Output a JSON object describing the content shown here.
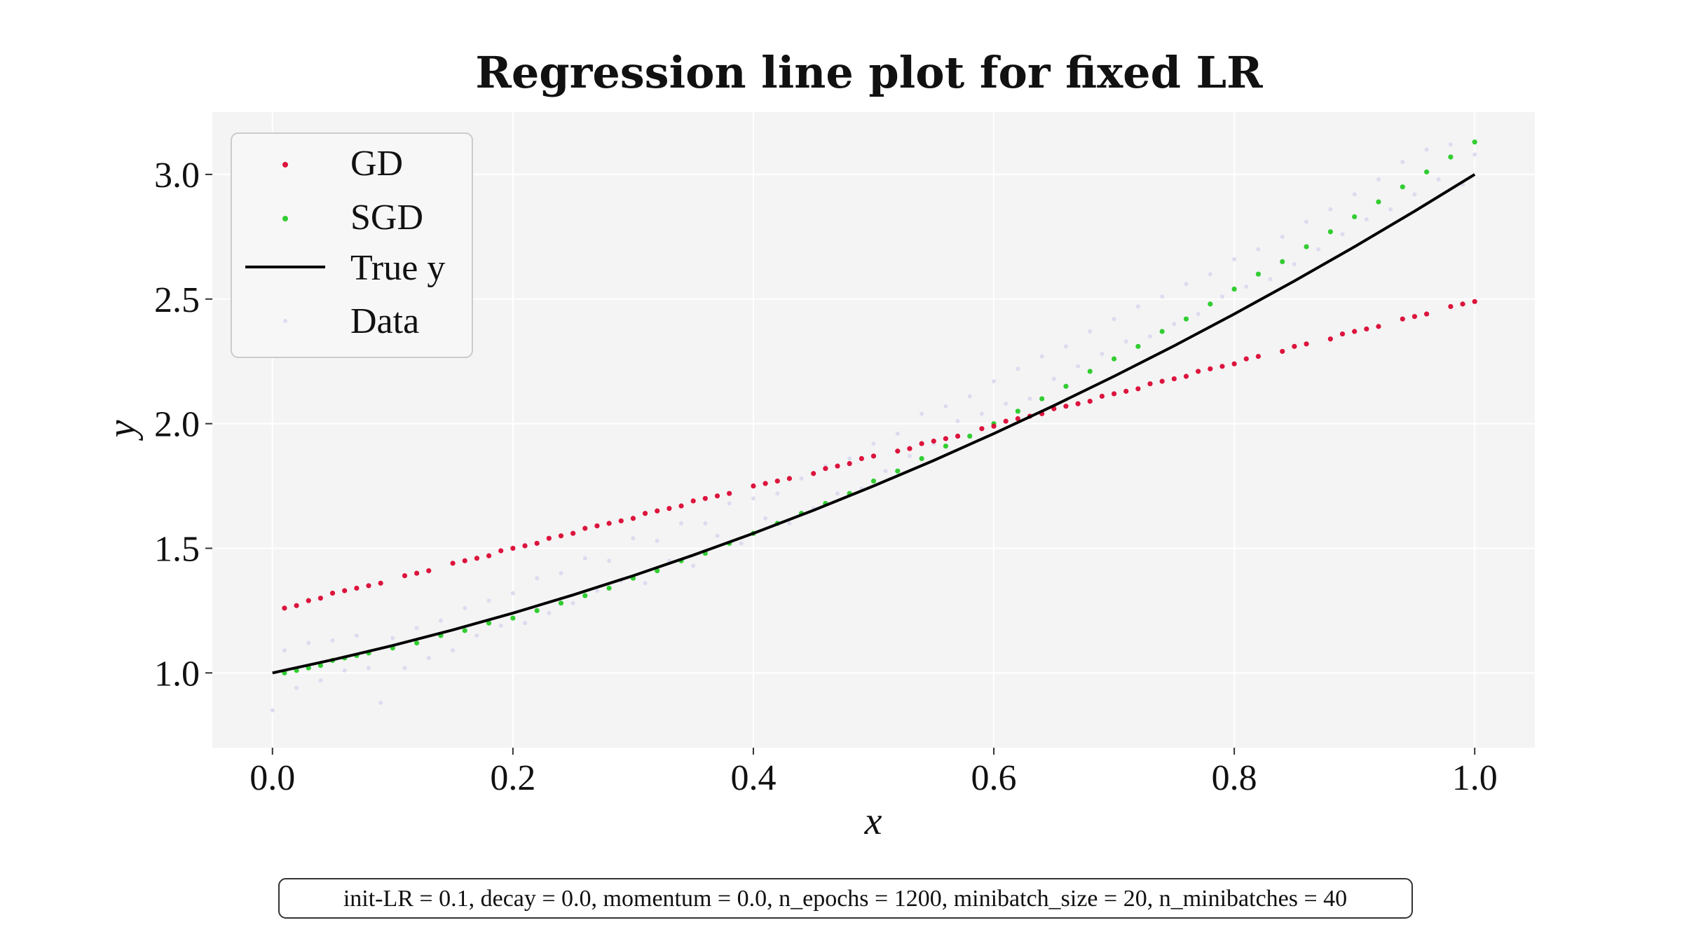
{
  "chart_data": {
    "type": "scatter",
    "title": "Regression line plot for fixed LR",
    "xlabel": "x",
    "ylabel": "y",
    "xlim": [
      -0.05,
      1.05
    ],
    "ylim": [
      0.7,
      3.25
    ],
    "grid": true,
    "legend_position": "top-left",
    "x_ticks": [
      0.0,
      0.2,
      0.4,
      0.6,
      0.8,
      1.0
    ],
    "x_tick_labels": [
      "0.0",
      "0.2",
      "0.4",
      "0.6",
      "0.8",
      "1.0"
    ],
    "y_ticks": [
      1.0,
      1.5,
      2.0,
      2.5,
      3.0
    ],
    "y_tick_labels": [
      "1.0",
      "1.5",
      "2.0",
      "2.5",
      "3.0"
    ],
    "series": [
      {
        "name": "GD",
        "kind": "points",
        "color": "#dc143c",
        "x": [
          0.01,
          0.02,
          0.03,
          0.04,
          0.05,
          0.06,
          0.07,
          0.08,
          0.09,
          0.11,
          0.12,
          0.13,
          0.15,
          0.16,
          0.17,
          0.18,
          0.19,
          0.2,
          0.21,
          0.22,
          0.23,
          0.24,
          0.25,
          0.26,
          0.27,
          0.28,
          0.29,
          0.3,
          0.31,
          0.32,
          0.33,
          0.34,
          0.35,
          0.36,
          0.37,
          0.38,
          0.4,
          0.41,
          0.42,
          0.43,
          0.45,
          0.46,
          0.47,
          0.48,
          0.49,
          0.5,
          0.52,
          0.53,
          0.54,
          0.55,
          0.56,
          0.57,
          0.59,
          0.6,
          0.61,
          0.62,
          0.63,
          0.64,
          0.65,
          0.66,
          0.67,
          0.68,
          0.69,
          0.7,
          0.71,
          0.72,
          0.73,
          0.74,
          0.75,
          0.76,
          0.77,
          0.78,
          0.79,
          0.8,
          0.81,
          0.82,
          0.84,
          0.85,
          0.86,
          0.88,
          0.89,
          0.9,
          0.91,
          0.92,
          0.94,
          0.95,
          0.96,
          0.98,
          0.99,
          1.0
        ],
        "y": [
          1.26,
          1.27,
          1.29,
          1.3,
          1.32,
          1.33,
          1.34,
          1.35,
          1.36,
          1.39,
          1.4,
          1.41,
          1.44,
          1.45,
          1.46,
          1.47,
          1.49,
          1.5,
          1.51,
          1.52,
          1.54,
          1.55,
          1.56,
          1.58,
          1.59,
          1.6,
          1.61,
          1.62,
          1.64,
          1.65,
          1.66,
          1.67,
          1.69,
          1.7,
          1.71,
          1.72,
          1.75,
          1.76,
          1.77,
          1.78,
          1.8,
          1.82,
          1.83,
          1.84,
          1.86,
          1.87,
          1.89,
          1.9,
          1.92,
          1.93,
          1.94,
          1.95,
          1.98,
          1.99,
          2.01,
          2.02,
          2.03,
          2.04,
          2.06,
          2.07,
          2.08,
          2.09,
          2.11,
          2.12,
          2.13,
          2.14,
          2.16,
          2.17,
          2.18,
          2.19,
          2.21,
          2.22,
          2.23,
          2.24,
          2.26,
          2.27,
          2.29,
          2.31,
          2.32,
          2.34,
          2.36,
          2.37,
          2.38,
          2.39,
          2.42,
          2.43,
          2.44,
          2.47,
          2.48,
          2.49
        ]
      },
      {
        "name": "SGD",
        "kind": "points",
        "color": "#32cd32",
        "x": [
          0.01,
          0.02,
          0.03,
          0.04,
          0.05,
          0.06,
          0.07,
          0.08,
          0.1,
          0.12,
          0.14,
          0.16,
          0.18,
          0.2,
          0.22,
          0.24,
          0.26,
          0.28,
          0.3,
          0.32,
          0.34,
          0.36,
          0.38,
          0.4,
          0.42,
          0.44,
          0.46,
          0.48,
          0.5,
          0.52,
          0.54,
          0.56,
          0.58,
          0.6,
          0.62,
          0.64,
          0.66,
          0.68,
          0.7,
          0.72,
          0.74,
          0.76,
          0.78,
          0.8,
          0.82,
          0.84,
          0.86,
          0.88,
          0.9,
          0.92,
          0.94,
          0.96,
          0.98,
          1.0
        ],
        "y": [
          1.0,
          1.01,
          1.02,
          1.03,
          1.05,
          1.06,
          1.07,
          1.08,
          1.1,
          1.12,
          1.15,
          1.17,
          1.2,
          1.22,
          1.25,
          1.28,
          1.31,
          1.34,
          1.38,
          1.41,
          1.45,
          1.48,
          1.52,
          1.56,
          1.6,
          1.64,
          1.68,
          1.72,
          1.77,
          1.81,
          1.86,
          1.91,
          1.95,
          2.0,
          2.05,
          2.1,
          2.15,
          2.21,
          2.26,
          2.31,
          2.37,
          2.42,
          2.48,
          2.54,
          2.6,
          2.65,
          2.71,
          2.77,
          2.83,
          2.89,
          2.95,
          3.01,
          3.07,
          3.13
        ]
      },
      {
        "name": "True y",
        "kind": "line",
        "color": "#000000",
        "x": [
          0.0,
          0.05,
          0.1,
          0.15,
          0.2,
          0.25,
          0.3,
          0.35,
          0.4,
          0.45,
          0.5,
          0.55,
          0.6,
          0.65,
          0.7,
          0.75,
          0.8,
          0.85,
          0.9,
          0.95,
          1.0
        ],
        "y": [
          1.0,
          1.0525,
          1.11,
          1.1725,
          1.24,
          1.3125,
          1.39,
          1.4725,
          1.56,
          1.6525,
          1.75,
          1.8525,
          1.96,
          2.0725,
          2.19,
          2.3125,
          2.44,
          2.5725,
          2.71,
          2.8525,
          3.0
        ]
      },
      {
        "name": "Data",
        "kind": "points",
        "color": "#dcdcf0",
        "x": [
          0.0,
          0.01,
          0.02,
          0.03,
          0.04,
          0.05,
          0.06,
          0.07,
          0.08,
          0.09,
          0.1,
          0.11,
          0.12,
          0.13,
          0.14,
          0.15,
          0.16,
          0.17,
          0.18,
          0.19,
          0.2,
          0.21,
          0.22,
          0.23,
          0.24,
          0.25,
          0.26,
          0.27,
          0.28,
          0.29,
          0.3,
          0.31,
          0.32,
          0.33,
          0.34,
          0.35,
          0.36,
          0.37,
          0.38,
          0.39,
          0.4,
          0.41,
          0.42,
          0.43,
          0.44,
          0.45,
          0.46,
          0.47,
          0.48,
          0.49,
          0.5,
          0.51,
          0.52,
          0.53,
          0.54,
          0.55,
          0.56,
          0.57,
          0.58,
          0.59,
          0.6,
          0.61,
          0.62,
          0.63,
          0.64,
          0.65,
          0.66,
          0.67,
          0.68,
          0.69,
          0.7,
          0.71,
          0.72,
          0.73,
          0.74,
          0.75,
          0.76,
          0.77,
          0.78,
          0.79,
          0.8,
          0.81,
          0.82,
          0.83,
          0.84,
          0.85,
          0.86,
          0.87,
          0.88,
          0.89,
          0.9,
          0.91,
          0.92,
          0.93,
          0.94,
          0.95,
          0.96,
          0.97,
          0.98,
          0.99,
          1.0
        ],
        "y": [
          0.85,
          1.09,
          0.94,
          1.12,
          0.97,
          1.13,
          1.01,
          1.15,
          1.02,
          0.88,
          1.14,
          1.02,
          1.18,
          1.06,
          1.21,
          1.09,
          1.26,
          1.15,
          1.29,
          1.19,
          1.32,
          1.2,
          1.38,
          1.24,
          1.4,
          1.28,
          1.46,
          1.33,
          1.45,
          1.37,
          1.54,
          1.36,
          1.53,
          1.45,
          1.6,
          1.43,
          1.6,
          1.55,
          1.68,
          1.52,
          1.7,
          1.62,
          1.72,
          1.6,
          1.78,
          1.66,
          1.83,
          1.72,
          1.86,
          1.74,
          1.92,
          1.81,
          1.96,
          1.87,
          2.04,
          1.92,
          2.07,
          2.01,
          2.11,
          2.04,
          2.17,
          2.08,
          2.22,
          2.1,
          2.27,
          2.18,
          2.31,
          2.23,
          2.37,
          2.28,
          2.42,
          2.33,
          2.47,
          2.35,
          2.51,
          2.4,
          2.56,
          2.44,
          2.6,
          2.51,
          2.66,
          2.55,
          2.7,
          2.58,
          2.75,
          2.64,
          2.81,
          2.7,
          2.86,
          2.76,
          2.92,
          2.82,
          2.98,
          2.86,
          3.05,
          2.92,
          3.1,
          2.98,
          3.12,
          2.96,
          3.08
        ]
      }
    ],
    "footer_text": "init-LR = 0.1, decay = 0.0, momentum = 0.0, n_epochs = 1200, minibatch_size = 20, n_minibatches = 40"
  }
}
